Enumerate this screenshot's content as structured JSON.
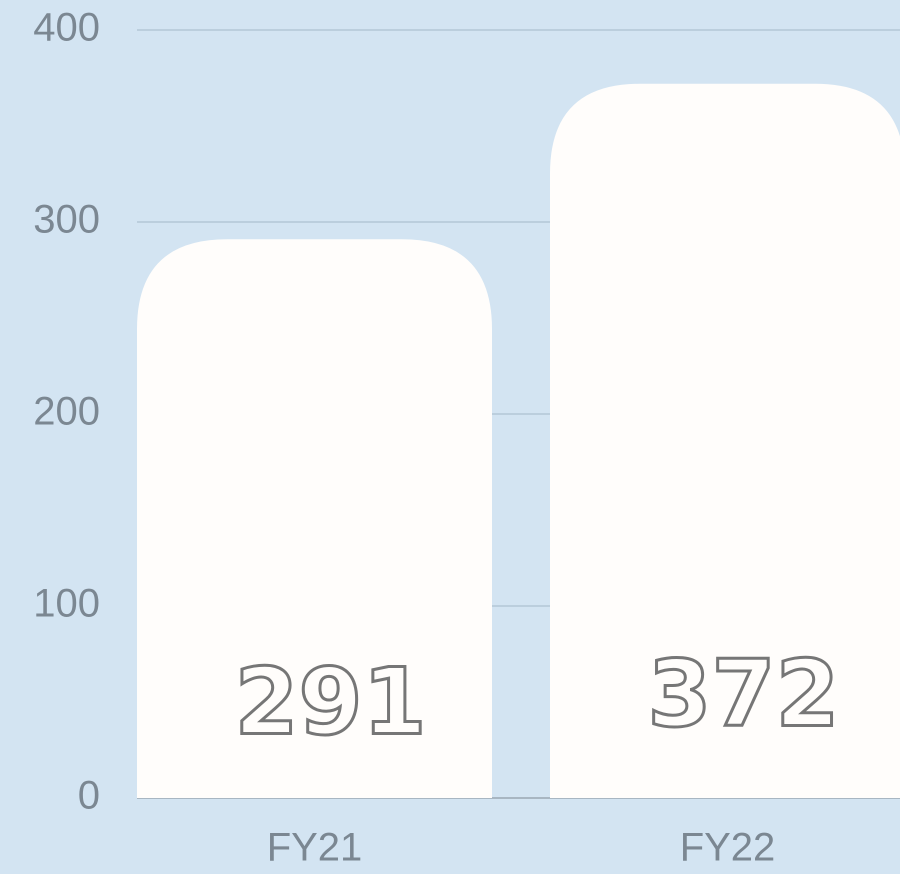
{
  "chart_data": {
    "type": "bar",
    "categories": [
      "FY21",
      "FY22"
    ],
    "values": [
      291,
      372
    ],
    "color": "#fffdfb",
    "ylim": [
      0,
      400
    ],
    "yticks": [
      0,
      100,
      200,
      300,
      400
    ],
    "grid": true
  }
}
